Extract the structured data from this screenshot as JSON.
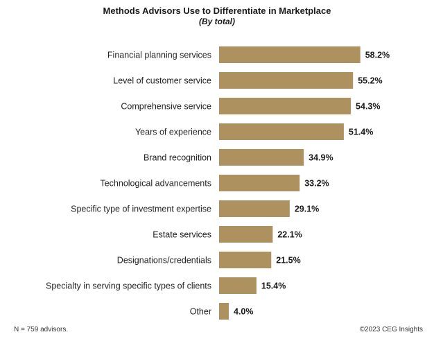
{
  "chart_data": {
    "type": "bar",
    "orientation": "horizontal",
    "title": "Methods Advisors Use to Differentiate in Marketplace",
    "subtitle": "(By total)",
    "categories": [
      "Financial planning services",
      "Level of customer service",
      "Comprehensive service",
      "Years of experience",
      "Brand recognition",
      "Technological advancements",
      "Specific type of investment expertise",
      "Estate services",
      "Designations/credentials",
      "Specialty in serving specific types of clients",
      "Other"
    ],
    "values": [
      58.2,
      55.2,
      54.3,
      51.4,
      34.9,
      33.2,
      29.1,
      22.1,
      21.5,
      15.4,
      4.0
    ],
    "value_labels": [
      "58.2%",
      "55.2%",
      "54.3%",
      "51.4%",
      "34.9%",
      "33.2%",
      "29.1%",
      "22.1%",
      "21.5%",
      "15.4%",
      "4.0%"
    ],
    "unit": "%",
    "xlim": [
      0,
      100
    ],
    "grid": false,
    "legend": "none",
    "bar_color": "#ad9260"
  },
  "footnote": "N = 759 advisors.",
  "copyright": "©2023 CEG Insights"
}
